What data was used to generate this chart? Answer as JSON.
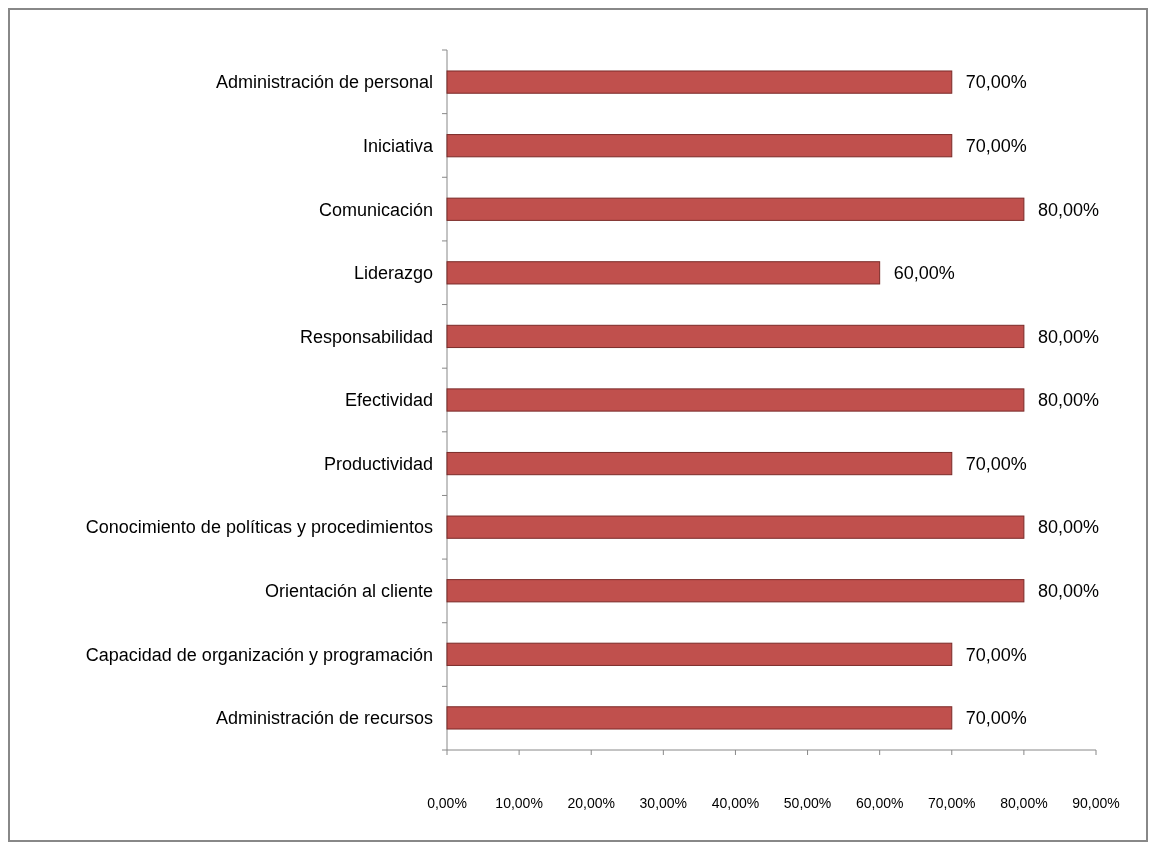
{
  "chart_data": {
    "type": "bar",
    "orientation": "horizontal",
    "categories": [
      "Administración de personal",
      "Iniciativa",
      "Comunicación",
      "Liderazgo",
      "Responsabilidad",
      "Efectividad",
      "Productividad",
      "Conocimiento de políticas y procedimientos",
      "Orientación al cliente",
      "Capacidad de organización y programación",
      "Administración de recursos"
    ],
    "values": [
      70,
      70,
      80,
      60,
      80,
      80,
      70,
      80,
      80,
      70,
      70
    ],
    "value_labels": [
      "70,00%",
      "70,00%",
      "80,00%",
      "60,00%",
      "80,00%",
      "80,00%",
      "70,00%",
      "80,00%",
      "80,00%",
      "70,00%",
      "70,00%"
    ],
    "color": "#c0504d",
    "xlim": [
      0,
      90
    ],
    "xticks": [
      {
        "value": 0,
        "label": "0,00%"
      },
      {
        "value": 10,
        "label": "10,00%"
      },
      {
        "value": 20,
        "label": "20,00%"
      },
      {
        "value": 30,
        "label": "30,00%"
      },
      {
        "value": 40,
        "label": "40,00%"
      },
      {
        "value": 50,
        "label": "50,00%"
      },
      {
        "value": 60,
        "label": "60,00%"
      },
      {
        "value": 70,
        "label": "70,00%"
      },
      {
        "value": 80,
        "label": "80,00%"
      },
      {
        "value": 90,
        "label": "90,00%"
      }
    ],
    "grid": false
  }
}
